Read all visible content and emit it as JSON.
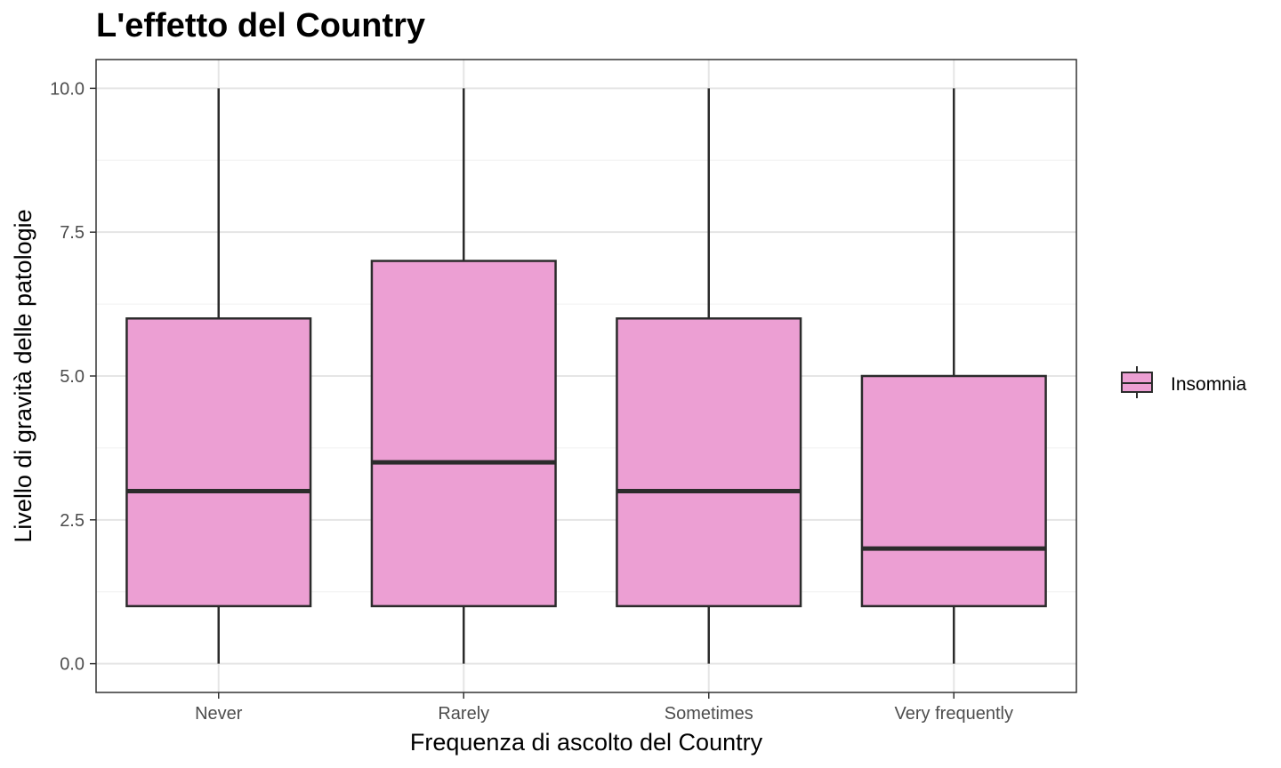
{
  "chart_data": {
    "type": "boxplot",
    "title": "L'effetto del Country",
    "xlabel": "Frequenza di ascolto del Country",
    "ylabel": "Livello di gravità delle patologie",
    "categories": [
      "Never",
      "Rarely",
      "Sometimes",
      "Very frequently"
    ],
    "ylim": [
      -0.5,
      10.5
    ],
    "yticks": [
      0.0,
      2.5,
      5.0,
      7.5,
      10.0
    ],
    "ytick_labels": [
      "0.0",
      "2.5",
      "5.0",
      "7.5",
      "10.0"
    ],
    "grid": true,
    "legend_position": "right",
    "series": [
      {
        "name": "Insomnia",
        "color": "#EC9FD3",
        "boxes": [
          {
            "category": "Never",
            "min": 0,
            "q1": 1,
            "median": 3,
            "q3": 6,
            "max": 10
          },
          {
            "category": "Rarely",
            "min": 0,
            "q1": 1,
            "median": 3.5,
            "q3": 7,
            "max": 10
          },
          {
            "category": "Sometimes",
            "min": 0,
            "q1": 1,
            "median": 3,
            "q3": 6,
            "max": 10
          },
          {
            "category": "Very frequently",
            "min": 0,
            "q1": 1,
            "median": 2,
            "q3": 5,
            "max": 10
          }
        ]
      }
    ]
  },
  "legend": {
    "items": [
      {
        "label": "Insomnia",
        "color": "#EC9FD3"
      }
    ]
  },
  "colors": {
    "box_fill": "#EC9FD3",
    "box_stroke": "#2b2b2b",
    "grid_major": "#e5e5e5",
    "grid_minor": "#f0f0f0",
    "panel_border": "#333333"
  }
}
